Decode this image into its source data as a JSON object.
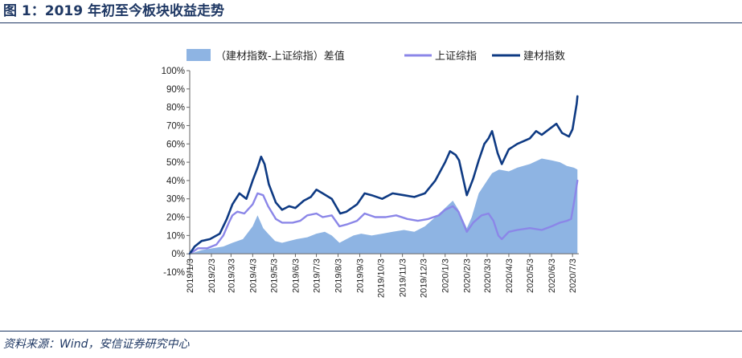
{
  "header": {
    "title": "图 1：2019 年初至今板块收益走势"
  },
  "footer": {
    "source": "资料来源：Wind，安信证券研究中心"
  },
  "colors": {
    "diff_fill": "#8EB4E3",
    "index_line": "#8B86E8",
    "building_line": "#0E3A83",
    "rule": "#1f3864"
  },
  "chart_data": {
    "type": "line",
    "title": "",
    "xlabel": "",
    "ylabel": "",
    "ylim": [
      -0.1,
      1.0
    ],
    "y_ticks": [
      "100%",
      "90%",
      "80%",
      "70%",
      "60%",
      "50%",
      "40%",
      "30%",
      "20%",
      "10%",
      "0%",
      "-10%"
    ],
    "x_tick_labels": [
      "2019/1/3",
      "2019/2/3",
      "2019/3/3",
      "2019/4/3",
      "2019/5/3",
      "2019/6/3",
      "2019/7/3",
      "2019/8/3",
      "2019/9/3",
      "2019/10/3",
      "2019/11/3",
      "2019/12/3",
      "2020/1/3",
      "2020/2/3",
      "2020/3/3",
      "2020/4/3",
      "2020/5/3",
      "2020/6/3",
      "2020/7/3"
    ],
    "legend": {
      "placement": "top",
      "items": [
        "（建材指数-上证综指）差值",
        "上证综指",
        "建材指数"
      ]
    },
    "series": [
      {
        "name": "（建材指数-上证综指）差值",
        "kind": "area",
        "points": [
          [
            "2019-01-03",
            0.0
          ],
          [
            "2019-01-20",
            0.02
          ],
          [
            "2019-02-05",
            0.03
          ],
          [
            "2019-02-20",
            0.04
          ],
          [
            "2019-03-05",
            0.06
          ],
          [
            "2019-03-20",
            0.08
          ],
          [
            "2019-04-03",
            0.15
          ],
          [
            "2019-04-10",
            0.21
          ],
          [
            "2019-04-18",
            0.14
          ],
          [
            "2019-04-25",
            0.11
          ],
          [
            "2019-05-05",
            0.07
          ],
          [
            "2019-05-15",
            0.06
          ],
          [
            "2019-05-25",
            0.07
          ],
          [
            "2019-06-05",
            0.08
          ],
          [
            "2019-06-20",
            0.09
          ],
          [
            "2019-07-03",
            0.11
          ],
          [
            "2019-07-15",
            0.12
          ],
          [
            "2019-07-25",
            0.1
          ],
          [
            "2019-08-05",
            0.06
          ],
          [
            "2019-08-15",
            0.08
          ],
          [
            "2019-08-25",
            0.1
          ],
          [
            "2019-09-05",
            0.11
          ],
          [
            "2019-09-20",
            0.1
          ],
          [
            "2019-10-05",
            0.11
          ],
          [
            "2019-10-20",
            0.12
          ],
          [
            "2019-11-05",
            0.13
          ],
          [
            "2019-11-20",
            0.12
          ],
          [
            "2019-12-05",
            0.15
          ],
          [
            "2019-12-20",
            0.2
          ],
          [
            "2020-01-03",
            0.25
          ],
          [
            "2020-01-14",
            0.29
          ],
          [
            "2020-01-22",
            0.24
          ],
          [
            "2020-02-03",
            0.14
          ],
          [
            "2020-02-10",
            0.2
          ],
          [
            "2020-02-20",
            0.33
          ],
          [
            "2020-03-03",
            0.4
          ],
          [
            "2020-03-10",
            0.44
          ],
          [
            "2020-03-20",
            0.46
          ],
          [
            "2020-04-03",
            0.45
          ],
          [
            "2020-04-15",
            0.47
          ],
          [
            "2020-05-03",
            0.49
          ],
          [
            "2020-05-20",
            0.52
          ],
          [
            "2020-06-03",
            0.51
          ],
          [
            "2020-06-15",
            0.5
          ],
          [
            "2020-06-25",
            0.48
          ],
          [
            "2020-07-05",
            0.47
          ],
          [
            "2020-07-10",
            0.46
          ]
        ]
      },
      {
        "name": "上证综指",
        "kind": "line",
        "points": [
          [
            "2019-01-03",
            0.0
          ],
          [
            "2019-01-15",
            0.03
          ],
          [
            "2019-01-28",
            0.03
          ],
          [
            "2019-02-10",
            0.05
          ],
          [
            "2019-02-20",
            0.1
          ],
          [
            "2019-02-28",
            0.17
          ],
          [
            "2019-03-05",
            0.21
          ],
          [
            "2019-03-12",
            0.23
          ],
          [
            "2019-03-22",
            0.22
          ],
          [
            "2019-04-03",
            0.27
          ],
          [
            "2019-04-10",
            0.33
          ],
          [
            "2019-04-18",
            0.32
          ],
          [
            "2019-04-25",
            0.26
          ],
          [
            "2019-05-06",
            0.19
          ],
          [
            "2019-05-15",
            0.17
          ],
          [
            "2019-05-30",
            0.17
          ],
          [
            "2019-06-10",
            0.18
          ],
          [
            "2019-06-20",
            0.21
          ],
          [
            "2019-07-03",
            0.22
          ],
          [
            "2019-07-12",
            0.2
          ],
          [
            "2019-07-25",
            0.21
          ],
          [
            "2019-08-05",
            0.15
          ],
          [
            "2019-08-15",
            0.16
          ],
          [
            "2019-08-30",
            0.18
          ],
          [
            "2019-09-10",
            0.22
          ],
          [
            "2019-09-25",
            0.2
          ],
          [
            "2019-10-10",
            0.2
          ],
          [
            "2019-10-25",
            0.21
          ],
          [
            "2019-11-10",
            0.19
          ],
          [
            "2019-11-25",
            0.18
          ],
          [
            "2019-12-10",
            0.19
          ],
          [
            "2019-12-25",
            0.21
          ],
          [
            "2020-01-03",
            0.24
          ],
          [
            "2020-01-14",
            0.26
          ],
          [
            "2020-01-22",
            0.23
          ],
          [
            "2020-02-03",
            0.12
          ],
          [
            "2020-02-12",
            0.17
          ],
          [
            "2020-02-24",
            0.21
          ],
          [
            "2020-03-05",
            0.22
          ],
          [
            "2020-03-12",
            0.18
          ],
          [
            "2020-03-19",
            0.1
          ],
          [
            "2020-03-24",
            0.08
          ],
          [
            "2020-04-03",
            0.12
          ],
          [
            "2020-04-15",
            0.13
          ],
          [
            "2020-05-03",
            0.14
          ],
          [
            "2020-05-20",
            0.13
          ],
          [
            "2020-06-03",
            0.15
          ],
          [
            "2020-06-15",
            0.17
          ],
          [
            "2020-06-25",
            0.18
          ],
          [
            "2020-07-01",
            0.19
          ],
          [
            "2020-07-06",
            0.3
          ],
          [
            "2020-07-10",
            0.4
          ]
        ]
      },
      {
        "name": "建材指数",
        "kind": "line",
        "points": [
          [
            "2019-01-03",
            0.0
          ],
          [
            "2019-01-10",
            0.04
          ],
          [
            "2019-01-20",
            0.07
          ],
          [
            "2019-02-01",
            0.08
          ],
          [
            "2019-02-15",
            0.11
          ],
          [
            "2019-02-25",
            0.19
          ],
          [
            "2019-03-05",
            0.27
          ],
          [
            "2019-03-15",
            0.33
          ],
          [
            "2019-03-25",
            0.3
          ],
          [
            "2019-04-03",
            0.4
          ],
          [
            "2019-04-10",
            0.47
          ],
          [
            "2019-04-15",
            0.53
          ],
          [
            "2019-04-20",
            0.49
          ],
          [
            "2019-04-26",
            0.38
          ],
          [
            "2019-05-06",
            0.28
          ],
          [
            "2019-05-15",
            0.24
          ],
          [
            "2019-05-25",
            0.26
          ],
          [
            "2019-06-03",
            0.25
          ],
          [
            "2019-06-15",
            0.29
          ],
          [
            "2019-06-25",
            0.31
          ],
          [
            "2019-07-03",
            0.35
          ],
          [
            "2019-07-12",
            0.33
          ],
          [
            "2019-07-25",
            0.3
          ],
          [
            "2019-08-06",
            0.22
          ],
          [
            "2019-08-15",
            0.23
          ],
          [
            "2019-08-30",
            0.27
          ],
          [
            "2019-09-10",
            0.33
          ],
          [
            "2019-09-20",
            0.32
          ],
          [
            "2019-10-05",
            0.3
          ],
          [
            "2019-10-20",
            0.33
          ],
          [
            "2019-11-05",
            0.32
          ],
          [
            "2019-11-20",
            0.31
          ],
          [
            "2019-12-05",
            0.33
          ],
          [
            "2019-12-20",
            0.4
          ],
          [
            "2020-01-03",
            0.5
          ],
          [
            "2020-01-10",
            0.56
          ],
          [
            "2020-01-18",
            0.54
          ],
          [
            "2020-01-23",
            0.51
          ],
          [
            "2020-02-03",
            0.32
          ],
          [
            "2020-02-12",
            0.41
          ],
          [
            "2020-02-20",
            0.51
          ],
          [
            "2020-02-28",
            0.6
          ],
          [
            "2020-03-05",
            0.63
          ],
          [
            "2020-03-10",
            0.67
          ],
          [
            "2020-03-18",
            0.55
          ],
          [
            "2020-03-24",
            0.49
          ],
          [
            "2020-04-03",
            0.57
          ],
          [
            "2020-04-15",
            0.6
          ],
          [
            "2020-05-03",
            0.63
          ],
          [
            "2020-05-12",
            0.67
          ],
          [
            "2020-05-20",
            0.65
          ],
          [
            "2020-06-03",
            0.69
          ],
          [
            "2020-06-10",
            0.71
          ],
          [
            "2020-06-18",
            0.66
          ],
          [
            "2020-06-28",
            0.64
          ],
          [
            "2020-07-03",
            0.68
          ],
          [
            "2020-07-06",
            0.75
          ],
          [
            "2020-07-09",
            0.82
          ],
          [
            "2020-07-10",
            0.86
          ]
        ]
      }
    ]
  }
}
